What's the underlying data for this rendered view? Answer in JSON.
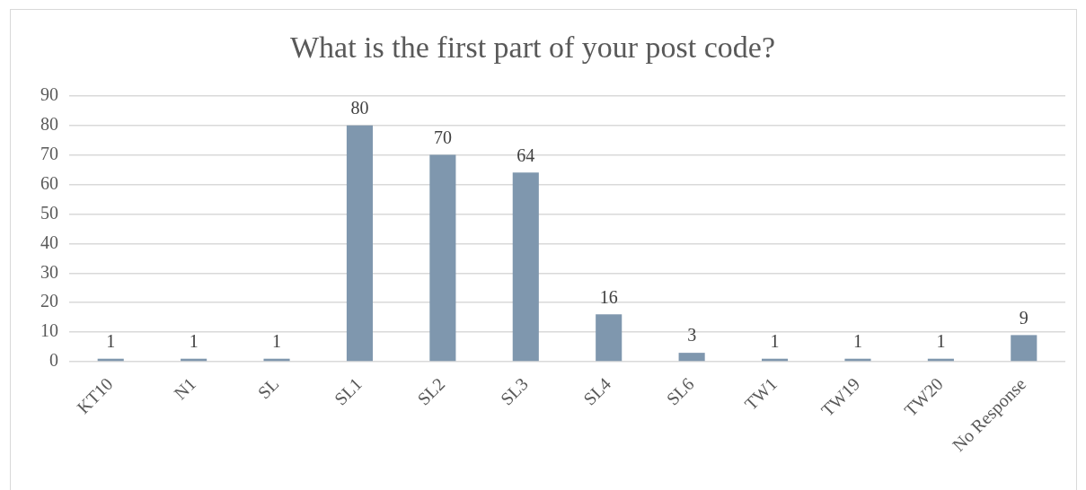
{
  "chart_data": {
    "type": "bar",
    "title": "What is the first part of your post code?",
    "categories": [
      "KT10",
      "N1",
      "SL",
      "SL1",
      "SL2",
      "SL3",
      "SL4",
      "SL6",
      "TW1",
      "TW19",
      "TW20",
      "No Response"
    ],
    "values": [
      1,
      1,
      1,
      80,
      70,
      64,
      16,
      3,
      1,
      1,
      1,
      9
    ],
    "color": "#7f97ae",
    "ylim": [
      0,
      90
    ],
    "yticks": [
      0,
      10,
      20,
      30,
      40,
      50,
      60,
      70,
      80,
      90
    ],
    "grid": "y",
    "data_labels": true
  }
}
